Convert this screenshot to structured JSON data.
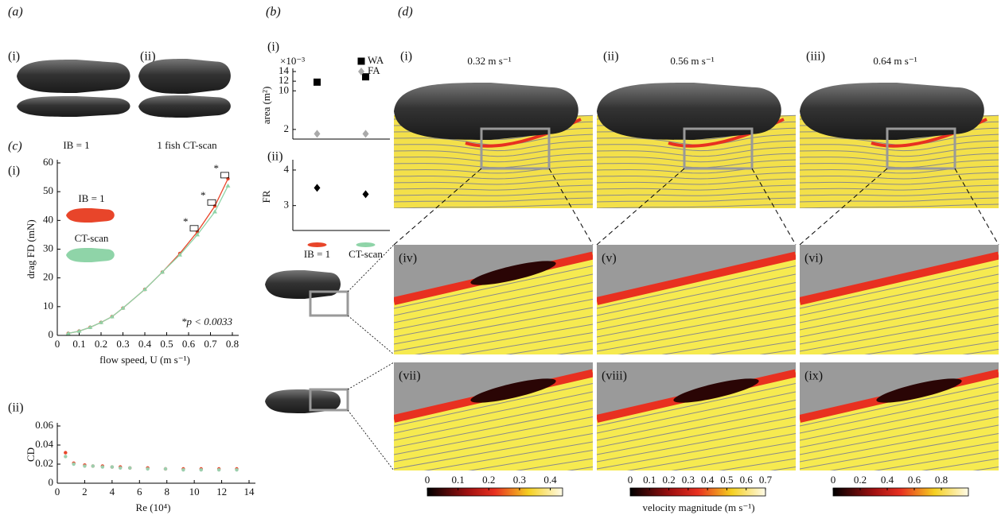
{
  "panel_a": {
    "label": "(a)",
    "sub": [
      "(i)",
      "(ii)"
    ],
    "captions": [
      "IB = 1",
      "1 fish CT-scan"
    ]
  },
  "panel_b": {
    "label": "(b)",
    "sub": [
      "(i)",
      "(ii)"
    ]
  },
  "panel_c": {
    "label": "(c)",
    "sub": [
      "(i)",
      "(ii)"
    ]
  },
  "panel_d": {
    "label": "(d)",
    "sub": [
      "(i)",
      "(ii)",
      "(iii)",
      "(iv)",
      "(v)",
      "(vi)",
      "(vii)",
      "(viii)",
      "(ix)"
    ],
    "speeds": [
      "0.32 m s⁻¹",
      "0.56 m s⁻¹",
      "0.64 m s⁻¹"
    ],
    "colorbars": [
      {
        "lim": [
          0,
          0.44
        ],
        "ticks": [
          0,
          0.1,
          0.2,
          0.3,
          0.4
        ]
      },
      {
        "lim": [
          0,
          0.7
        ],
        "ticks": [
          0,
          0.1,
          0.2,
          0.3,
          0.4,
          0.5,
          0.6,
          0.7
        ]
      },
      {
        "lim": [
          0,
          1.0
        ],
        "ticks": [
          0,
          0.2,
          0.4,
          0.6,
          0.8
        ]
      }
    ],
    "colorbar_label": "velocity magnitude (m s⁻¹)"
  },
  "chart_data": [
    {
      "type": "scatter",
      "categories": [
        null,
        null
      ],
      "series": [
        {
          "name": "WA",
          "color": "#000000",
          "marker": "square",
          "values": [
            11.8,
            12.9
          ]
        },
        {
          "name": "FA",
          "color": "#aaaaaa",
          "marker": "diamond",
          "values": [
            1.1,
            1.1
          ]
        }
      ],
      "ylabel": "area (m²)",
      "axis_multiplier": "×10⁻³",
      "ylim": [
        0,
        14
      ],
      "yticks": [
        2,
        10,
        12,
        14
      ],
      "legend": "upper right"
    },
    {
      "type": "scatter",
      "categories": [
        "IB = 1",
        "CT-scan"
      ],
      "values": [
        3.5,
        3.32
      ],
      "color": "#000000",
      "marker": "diamond",
      "ylabel": "FR",
      "ylim": [
        2.3,
        4.2
      ],
      "yticks": [
        3,
        4
      ]
    },
    {
      "type": "line",
      "x": [
        0.05,
        0.1,
        0.15,
        0.2,
        0.25,
        0.3,
        0.4,
        0.48,
        0.56,
        0.64,
        0.72,
        0.78
      ],
      "series": [
        {
          "name": "IB = 1",
          "color": "#e8452a",
          "marker": "circle",
          "values": [
            0.7,
            1.5,
            2.8,
            4.5,
            6.5,
            9.5,
            16,
            22,
            28.5,
            36,
            45,
            54.5
          ]
        },
        {
          "name": "CT-scan",
          "color": "#8fd4a8",
          "marker": "triangle",
          "values": [
            0.7,
            1.5,
            2.8,
            4.5,
            6.5,
            9.5,
            16,
            22,
            28,
            35,
            43,
            52
          ]
        }
      ],
      "xlabel": "flow speed, U (m s⁻¹)",
      "ylabel": "drag FD (mN)",
      "xlim": [
        0,
        0.8
      ],
      "xticks": [
        0,
        0.1,
        0.2,
        0.3,
        0.4,
        0.5,
        0.6,
        0.7,
        0.8
      ],
      "ylim": [
        0,
        60
      ],
      "yticks": [
        0,
        10,
        20,
        30,
        40,
        50,
        60
      ],
      "legend": "upper left",
      "annotations": {
        "significance": [
          "*",
          "*",
          "*"
        ],
        "p_value": "*p < 0.0033"
      }
    },
    {
      "type": "scatter",
      "x": [
        0.6,
        1.2,
        2,
        2.6,
        3.3,
        4,
        4.6,
        5.3,
        6.6,
        7.9,
        9.2,
        10.5,
        11.8,
        13.1
      ],
      "series": [
        {
          "name": "IB = 1",
          "color": "#e8452a",
          "marker": "circle",
          "values": [
            0.032,
            0.021,
            0.019,
            0.018,
            0.018,
            0.017,
            0.017,
            0.016,
            0.016,
            0.015,
            0.015,
            0.015,
            0.015,
            0.015
          ]
        },
        {
          "name": "CT-scan",
          "color": "#9ccfae",
          "marker": "circle",
          "values": [
            0.028,
            0.02,
            0.018,
            0.018,
            0.017,
            0.017,
            0.016,
            0.016,
            0.015,
            0.015,
            0.014,
            0.014,
            0.014,
            0.014
          ]
        }
      ],
      "xlabel": "Re (10⁴)",
      "ylabel": "CD",
      "xlim": [
        0,
        14
      ],
      "xticks": [
        0,
        2,
        4,
        6,
        8,
        10,
        12,
        14
      ],
      "ylim": [
        0,
        0.06
      ],
      "yticks": [
        0,
        0.02,
        0.04,
        0.06
      ]
    }
  ]
}
